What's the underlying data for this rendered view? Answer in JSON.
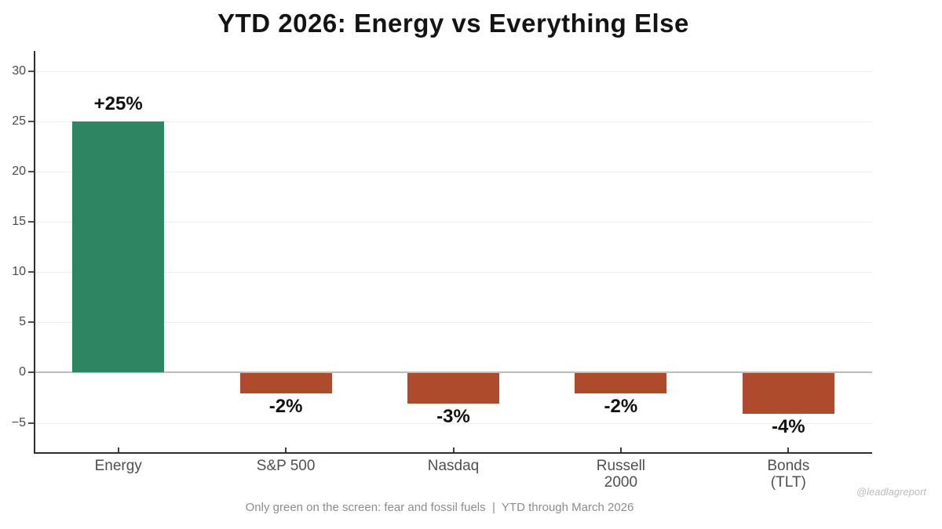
{
  "title": "YTD 2026: Energy vs Everything Else",
  "chart_data": {
    "type": "bar",
    "title": "YTD 2026: Energy vs Everything Else",
    "categories": [
      "Energy",
      "S&P 500",
      "Nasdaq",
      "Russell 2000",
      "Bonds (TLT)"
    ],
    "category_lines": [
      [
        "Energy"
      ],
      [
        "S&P 500"
      ],
      [
        "Nasdaq"
      ],
      [
        "Russell",
        "2000"
      ],
      [
        "Bonds",
        "(TLT)"
      ]
    ],
    "values": [
      25,
      -2,
      -3,
      -2,
      -4
    ],
    "bar_labels": [
      "+25%",
      "-2%",
      "-3%",
      "-2%",
      "-4%"
    ],
    "xlabel": "",
    "ylabel": "",
    "y_ticks": [
      30,
      25,
      20,
      15,
      10,
      5,
      0,
      -5
    ],
    "ylim": [
      -8,
      32
    ],
    "grid": true,
    "legend": "none",
    "colors": {
      "positive": "#2e8561",
      "negative": "#ad4b2c"
    }
  },
  "footer": {
    "caption": "Only green on the screen: fear and fossil fuels  |  YTD through March 2026",
    "watermark": "@leadlagreport"
  }
}
